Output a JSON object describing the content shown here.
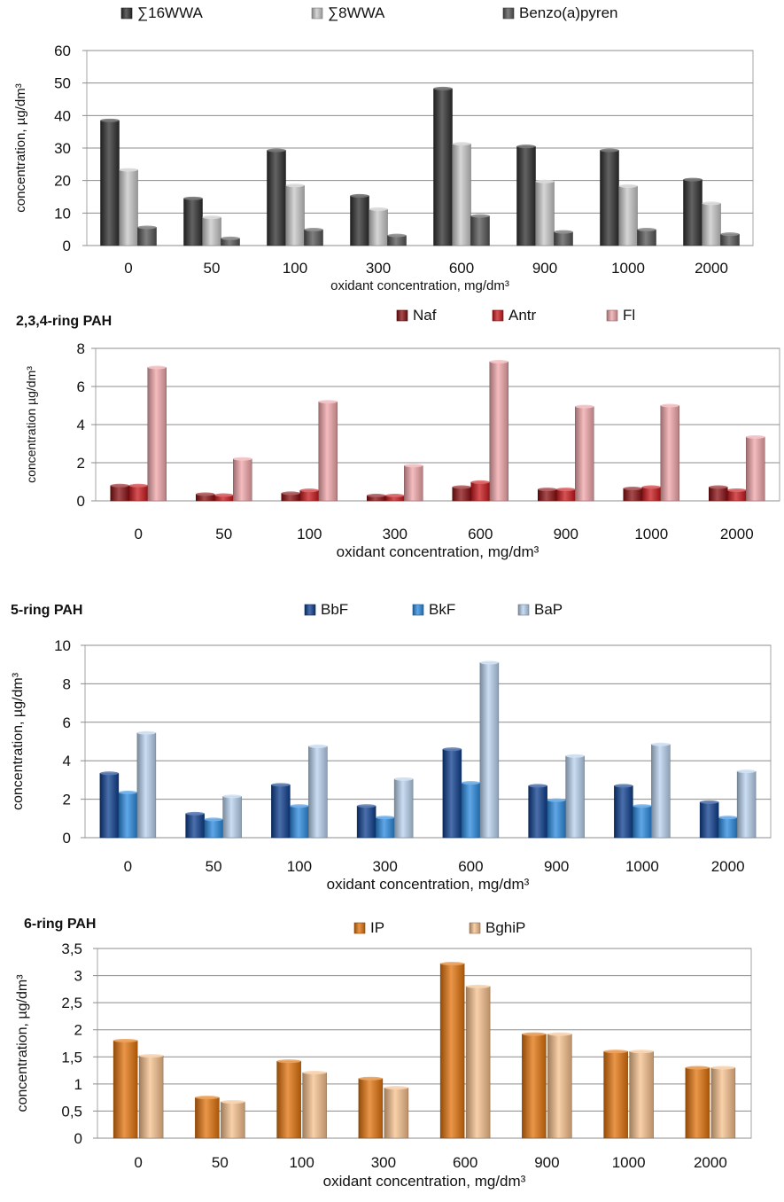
{
  "chart_data": [
    {
      "type": "bar",
      "title": "",
      "xlabel": "oxidant concentration, mg/dm³",
      "ylabel": "concentration, µg/dm³",
      "ylim": [
        0,
        60
      ],
      "yticks": [
        "0",
        "10",
        "20",
        "30",
        "40",
        "50",
        "60"
      ],
      "grid": true,
      "legend": "top",
      "categories": [
        "0",
        "50",
        "100",
        "300",
        "600",
        "900",
        "1000",
        "2000"
      ],
      "series": [
        {
          "name": "∑16WWA",
          "color": "#2f2f2f",
          "values": [
            38.5,
            14.5,
            29.3,
            15.3,
            48.3,
            30.5,
            29.3,
            20.3
          ]
        },
        {
          "name": "∑8WWA",
          "color": "#c8c8c8",
          "values": [
            23.3,
            8.7,
            18.5,
            11.2,
            31.3,
            19.7,
            18.3,
            13.0
          ]
        },
        {
          "name": "Benzo(a)pyren",
          "color": "#555555",
          "values": [
            5.6,
            2.2,
            4.9,
            3.1,
            9.1,
            4.2,
            4.9,
            3.5
          ]
        }
      ]
    },
    {
      "type": "bar",
      "title": "2,3,4-ring PAH",
      "xlabel": "oxidant concentration, mg/dm³",
      "ylabel": "concentration µg/dm³",
      "ylim": [
        0,
        8
      ],
      "yticks": [
        "0",
        "2",
        "4",
        "6",
        "8"
      ],
      "grid": true,
      "legend": "top",
      "categories": [
        "0",
        "50",
        "100",
        "300",
        "600",
        "900",
        "1000",
        "2000"
      ],
      "series": [
        {
          "name": "Naf",
          "color": "#8a0f12",
          "values": [
            0.8,
            0.35,
            0.4,
            0.28,
            0.72,
            0.6,
            0.65,
            0.72
          ]
        },
        {
          "name": "Antr",
          "color": "#c8181c",
          "values": [
            0.8,
            0.3,
            0.55,
            0.28,
            0.98,
            0.6,
            0.72,
            0.56
          ]
        },
        {
          "name": "Fl",
          "color": "#f0a6aa",
          "values": [
            7.0,
            2.2,
            5.2,
            1.85,
            7.3,
            4.95,
            5.0,
            3.35
          ]
        }
      ]
    },
    {
      "type": "bar",
      "title": "5-ring PAH",
      "xlabel": "oxidant concentration, mg/dm³",
      "ylabel": "concentration, µg/dm³",
      "ylim": [
        0,
        10
      ],
      "yticks": [
        "0",
        "2",
        "4",
        "6",
        "8",
        "10"
      ],
      "grid": true,
      "legend": "top",
      "categories": [
        "0",
        "50",
        "100",
        "300",
        "600",
        "900",
        "1000",
        "2000"
      ],
      "series": [
        {
          "name": "BbF",
          "color": "#0e3f8f",
          "values": [
            3.35,
            1.25,
            2.75,
            1.65,
            4.6,
            2.7,
            2.7,
            1.85
          ]
        },
        {
          "name": "BkF",
          "color": "#2b8ae0",
          "values": [
            2.35,
            0.95,
            1.65,
            1.05,
            2.85,
            1.95,
            1.65,
            1.05
          ]
        },
        {
          "name": "BaP",
          "color": "#b9d2ef",
          "values": [
            5.45,
            2.15,
            4.75,
            3.05,
            9.1,
            4.25,
            4.85,
            3.45
          ]
        }
      ]
    },
    {
      "type": "bar",
      "title": "6-ring PAH",
      "xlabel": "oxidant concentration, mg/dm³",
      "ylabel": "concentration, µg/dm³",
      "ylim": [
        0,
        3.5
      ],
      "yticks": [
        "0",
        "0,5",
        "1",
        "1,5",
        "2",
        "2,5",
        "3",
        "3,5"
      ],
      "grid": true,
      "legend": "top",
      "categories": [
        "0",
        "50",
        "100",
        "300",
        "600",
        "900",
        "1000",
        "2000"
      ],
      "series": [
        {
          "name": "IP",
          "color": "#e2730c",
          "values": [
            1.8,
            0.75,
            1.42,
            1.1,
            3.22,
            1.92,
            1.6,
            1.3
          ]
        },
        {
          "name": "BghiP",
          "color": "#f6c08c",
          "values": [
            1.52,
            0.67,
            1.21,
            0.93,
            2.8,
            1.92,
            1.6,
            1.3
          ]
        }
      ]
    }
  ]
}
